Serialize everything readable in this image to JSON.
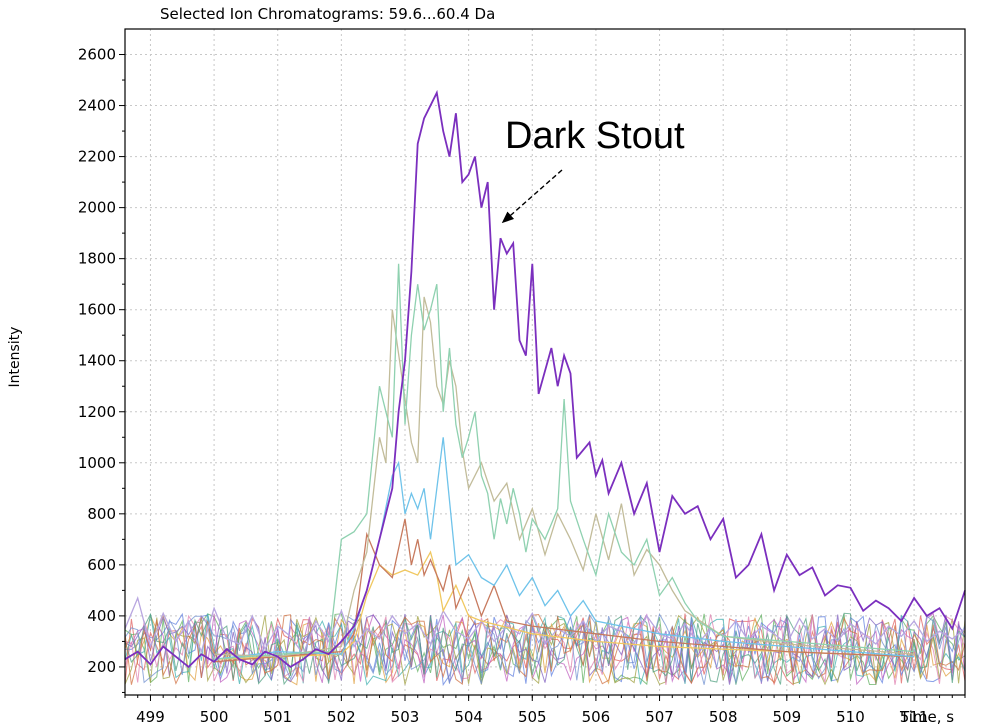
{
  "chart_data": {
    "type": "line",
    "title": "Selected Ion Chromatograms: 59.6...60.4 Da",
    "xlabel": "Time, s",
    "ylabel": "Intensity",
    "xlim": [
      498.6,
      511.8
    ],
    "ylim": [
      90,
      2700
    ],
    "x_ticks": [
      499,
      500,
      501,
      502,
      503,
      504,
      505,
      506,
      507,
      508,
      509,
      510,
      511
    ],
    "y_ticks": [
      200,
      400,
      600,
      800,
      1000,
      1200,
      1400,
      1600,
      1800,
      2000,
      2200,
      2400,
      2600
    ],
    "grid": true,
    "annotation": {
      "text": "Dark Stout",
      "arrow_target": [
        504.45,
        1960
      ]
    },
    "series": [
      {
        "color": "#7b2fbe",
        "x": [
          498.6,
          498.8,
          499.0,
          499.2,
          499.4,
          499.6,
          499.8,
          500.0,
          500.2,
          500.4,
          500.6,
          500.8,
          501.0,
          501.2,
          501.4,
          501.6,
          501.8,
          502.0,
          502.2,
          502.4,
          502.6,
          502.8,
          502.9,
          503.0,
          503.1,
          503.2,
          503.3,
          503.5,
          503.6,
          503.7,
          503.8,
          503.9,
          504.0,
          504.1,
          504.2,
          504.3,
          504.4,
          504.5,
          504.6,
          504.7,
          504.8,
          504.9,
          505.0,
          505.1,
          505.3,
          505.4,
          505.5,
          505.6,
          505.7,
          505.9,
          506.0,
          506.1,
          506.2,
          506.4,
          506.6,
          506.8,
          507.0,
          507.2,
          507.4,
          507.6,
          507.8,
          508.0,
          508.2,
          508.4,
          508.6,
          508.8,
          509.0,
          509.2,
          509.4,
          509.6,
          509.8,
          510.0,
          510.2,
          510.4,
          510.6,
          510.8,
          511.0,
          511.2,
          511.4,
          511.6,
          511.8
        ],
        "y": [
          230,
          260,
          210,
          280,
          240,
          200,
          250,
          220,
          270,
          230,
          210,
          260,
          240,
          200,
          230,
          270,
          250,
          300,
          360,
          500,
          700,
          900,
          1200,
          1400,
          1750,
          2250,
          2350,
          2450,
          2300,
          2200,
          2370,
          2100,
          2130,
          2200,
          2000,
          2100,
          1600,
          1880,
          1820,
          1860,
          1480,
          1420,
          1780,
          1270,
          1450,
          1300,
          1420,
          1350,
          1020,
          1080,
          950,
          1010,
          880,
          1000,
          800,
          920,
          650,
          870,
          800,
          830,
          700,
          780,
          550,
          600,
          720,
          500,
          640,
          560,
          590,
          480,
          520,
          510,
          420,
          460,
          430,
          380,
          470,
          400,
          430,
          350,
          500
        ]
      },
      {
        "color": "#8fd1b0",
        "x": [
          500,
          501,
          501.8,
          502.0,
          502.2,
          502.4,
          502.6,
          502.8,
          502.9,
          503.0,
          503.1,
          503.2,
          503.3,
          503.4,
          503.5,
          503.6,
          503.7,
          503.8,
          503.9,
          504.0,
          504.1,
          504.2,
          504.3,
          504.4,
          504.5,
          504.6,
          504.7,
          504.8,
          504.9,
          505.0,
          505.2,
          505.4,
          505.5,
          505.6,
          505.8,
          506.0,
          506.2,
          506.4,
          506.6,
          506.8,
          507.0,
          507.2,
          507.4,
          507.6,
          508,
          509,
          510,
          511
        ],
        "y": [
          230,
          250,
          260,
          700,
          730,
          800,
          1300,
          1100,
          1780,
          1150,
          1500,
          1700,
          1520,
          1600,
          1700,
          1200,
          1450,
          1150,
          1020,
          1100,
          1200,
          950,
          880,
          700,
          860,
          760,
          900,
          800,
          650,
          780,
          700,
          820,
          1250,
          850,
          700,
          560,
          800,
          650,
          600,
          700,
          480,
          550,
          450,
          380,
          320,
          300,
          280,
          260
        ]
      },
      {
        "color": "#c2bc9a",
        "x": [
          500,
          501,
          502.0,
          502.2,
          502.4,
          502.6,
          502.7,
          502.8,
          503.0,
          503.1,
          503.2,
          503.3,
          503.4,
          503.5,
          503.6,
          503.7,
          503.8,
          503.9,
          504.0,
          504.2,
          504.4,
          504.6,
          504.8,
          505.0,
          505.2,
          505.4,
          505.6,
          505.8,
          506.0,
          506.2,
          506.4,
          506.6,
          506.8,
          507.0,
          507.2,
          507.4,
          508,
          509,
          510,
          511
        ],
        "y": [
          250,
          240,
          280,
          500,
          650,
          1100,
          1000,
          1600,
          1250,
          1080,
          1000,
          1650,
          1550,
          1300,
          1230,
          1400,
          1300,
          1050,
          900,
          1000,
          850,
          920,
          700,
          820,
          640,
          800,
          700,
          580,
          800,
          620,
          840,
          560,
          660,
          600,
          500,
          420,
          320,
          290,
          270,
          250
        ]
      },
      {
        "color": "#6fc3ea",
        "x": [
          500,
          501,
          502.0,
          502.2,
          502.4,
          502.6,
          502.8,
          502.9,
          503.0,
          503.1,
          503.2,
          503.3,
          503.4,
          503.6,
          503.8,
          504.0,
          504.2,
          504.4,
          504.6,
          504.8,
          505.0,
          505.2,
          505.4,
          505.6,
          505.8,
          506,
          507,
          508,
          509,
          510,
          511
        ],
        "y": [
          230,
          260,
          250,
          350,
          500,
          700,
          950,
          1000,
          800,
          880,
          820,
          900,
          700,
          1100,
          600,
          640,
          550,
          520,
          600,
          480,
          550,
          440,
          500,
          400,
          460,
          380,
          330,
          300,
          280,
          260,
          240
        ]
      },
      {
        "color": "#c77a5e",
        "x": [
          500,
          501,
          502.0,
          502.2,
          502.4,
          502.6,
          502.8,
          503.0,
          503.1,
          503.2,
          503.3,
          503.4,
          503.5,
          503.6,
          503.7,
          503.8,
          504.0,
          504.2,
          504.4,
          504.6,
          505,
          506,
          507,
          508,
          509,
          510,
          511
        ],
        "y": [
          220,
          240,
          260,
          330,
          720,
          600,
          550,
          780,
          600,
          700,
          560,
          620,
          560,
          500,
          600,
          430,
          550,
          400,
          520,
          380,
          360,
          330,
          300,
          280,
          260,
          250,
          240
        ]
      },
      {
        "color": "#f0c860",
        "x": [
          500,
          501,
          502.0,
          502.2,
          502.4,
          502.6,
          502.8,
          503.0,
          503.2,
          503.4,
          503.5,
          503.6,
          503.8,
          504.0,
          504.2,
          505,
          506,
          507,
          508,
          509,
          510,
          511
        ],
        "y": [
          230,
          240,
          250,
          300,
          480,
          600,
          560,
          580,
          560,
          650,
          560,
          420,
          520,
          400,
          380,
          330,
          300,
          280,
          270,
          260,
          250,
          240
        ]
      },
      {
        "color": "#b8a6e0",
        "x": [
          498.6,
          498.8,
          499.0,
          499.2,
          499.4,
          499.6,
          499.8,
          500.0,
          500.2,
          500.4,
          500.6,
          500.8,
          501.0,
          501.2,
          501.4,
          501.6,
          501.8,
          502.0,
          502.2,
          502.4,
          502.6,
          502.8,
          503.0,
          503.2,
          503.4,
          503.6,
          503.8,
          504.0,
          504.2,
          504.4,
          504.6,
          504.8,
          505.0,
          505.2,
          505.4,
          505.6,
          505.8,
          506.0,
          506.2,
          506.4,
          506.6,
          506.8,
          507.0,
          507.2,
          507.4,
          507.6,
          507.8,
          508.0,
          508.2,
          508.4,
          508.6,
          508.8,
          509.0,
          509.2,
          509.4,
          509.6,
          509.8,
          510.0,
          510.2,
          510.4,
          510.6,
          510.8,
          511.0,
          511.2,
          511.4,
          511.6,
          511.8
        ],
        "y": [
          350,
          470,
          280,
          410,
          300,
          380,
          260,
          430,
          310,
          290,
          400,
          270,
          360,
          320,
          250,
          380,
          300,
          420,
          280,
          350,
          310,
          400,
          330,
          370,
          290,
          420,
          340,
          310,
          380,
          300,
          360,
          330,
          410,
          290,
          350,
          320,
          380,
          300,
          360,
          340,
          290,
          400,
          330,
          310,
          370,
          290,
          350,
          320,
          380,
          300,
          360,
          330,
          290,
          390,
          310,
          350,
          300,
          370,
          330,
          290,
          360,
          320,
          380,
          300,
          340,
          310,
          350
        ]
      }
    ]
  }
}
